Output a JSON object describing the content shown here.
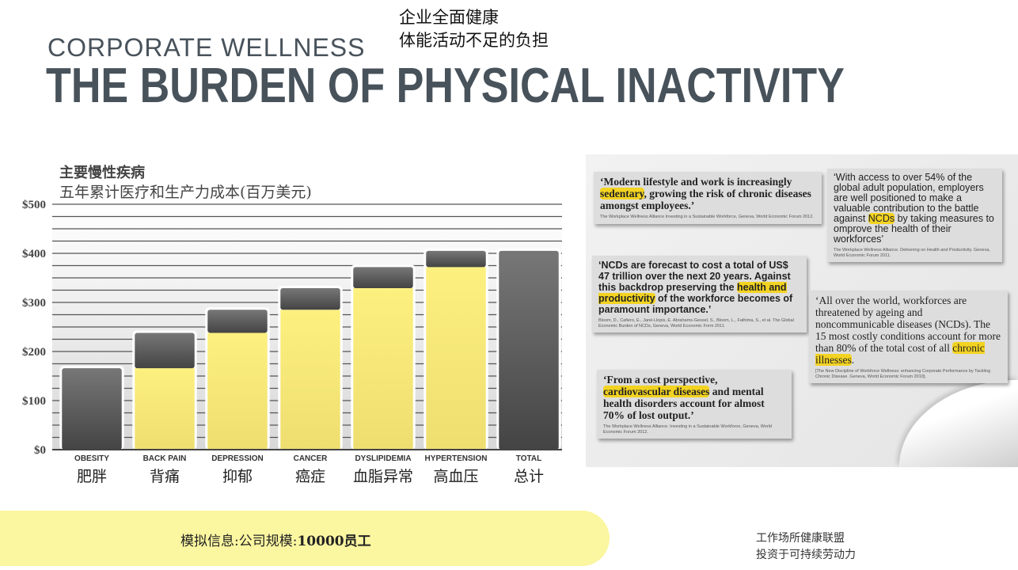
{
  "header": {
    "cn_line1": "企业全面健康",
    "cn_line2": "体能活动不足的负担",
    "subtitle": "CORPORATE WELLNESS",
    "title": "THE BURDEN OF PHYSICAL INACTIVITY"
  },
  "chart_data": {
    "type": "bar",
    "subtype": "waterfall",
    "title": "主要慢性疾病",
    "subtitle": "五年累计医疗和生产力成本(百万美元)",
    "categories": [
      "OBESITY",
      "BACK PAIN",
      "DEPRESSION",
      "CANCER",
      "DYSLIPIDEMIA",
      "HYPERTENSION",
      "TOTAL"
    ],
    "categories_cn": [
      "肥胖",
      "背痛",
      "抑郁",
      "癌症",
      "血脂异常",
      "高血压",
      "总计"
    ],
    "increments": [
      166,
      72,
      47,
      44,
      43,
      33,
      405
    ],
    "cumulative_base": [
      0,
      166,
      238,
      285,
      329,
      372,
      0
    ],
    "ylim": [
      0,
      500
    ],
    "yticks": [
      "$0",
      "$100",
      "$200",
      "$300",
      "$400",
      "$500"
    ],
    "ytick_values": [
      0,
      100,
      200,
      300,
      400,
      500
    ],
    "grid_step": 25,
    "grid": true,
    "colors": {
      "increment": "#5a5a5a",
      "base": "#fdf07f"
    }
  },
  "banner": {
    "text_prefix": "模拟信息:公司规模:",
    "text_bold": "10000员工"
  },
  "footer": {
    "line1": "工作场所健康联盟",
    "line2": "投资于可持续劳动力"
  },
  "clippings": [
    {
      "pre": "‘Modern lifestyle and work is increasingly ",
      "hl": "sedentary",
      "post": ", growing the risk of chronic diseases amongst employees.’",
      "source": "The Workplace Wellness Alliance Investing in a Sustainable Workforce, Geneva, World Economic Forum 2012."
    },
    {
      "pre": "‘With access to over 54% of the global adult population, employers are well positioned to make a valuable contribution to the battle against ",
      "hl": "NCDs",
      "post": " by taking measures to omprove the health of their workforces’",
      "source": "The Workplace Wellness Alliance. Delivering on Health and Productivity. Geneva, World Economic Forum 2011."
    },
    {
      "pre": "‘NCDs are forecast to cost a total of US$ 47 trillion over the next 20 years. Against this backdrop preserving the ",
      "hl": "health and productivity",
      "post": " of the workforce becomes of paramount importance.’",
      "source": "Bloom, D., Cafiero, E., Jané-Llopis, E. Abrahams-Gessel, S., Bloom, L., Fathima, S., et al. The Global Economic Burden of NCDs, Geneva, World Economic Form 2011."
    },
    {
      "pre": "‘All over the world, workforces are threatened by ageing and noncommunicable diseases (NCDs). The 15 most costly conditions account for more than 80% of the total cost of all ",
      "hl": "chronic illnesses",
      "post": ".",
      "source": "[The New Discipline of Workforce Wellness: enhancing Corporate Performance by Tackling Chronic Disease. Geneva, World Economic Forum 2010]."
    },
    {
      "pre": "‘From a cost perspective, ",
      "hl": "cardiovascular diseases",
      "post": " and mental health disorders account for almost 70% of lost output.’",
      "source": "The Workplace Wellness Alliance. Investing in a Sustainable Workforce, Geneva, World Economic Forum 2012."
    }
  ]
}
